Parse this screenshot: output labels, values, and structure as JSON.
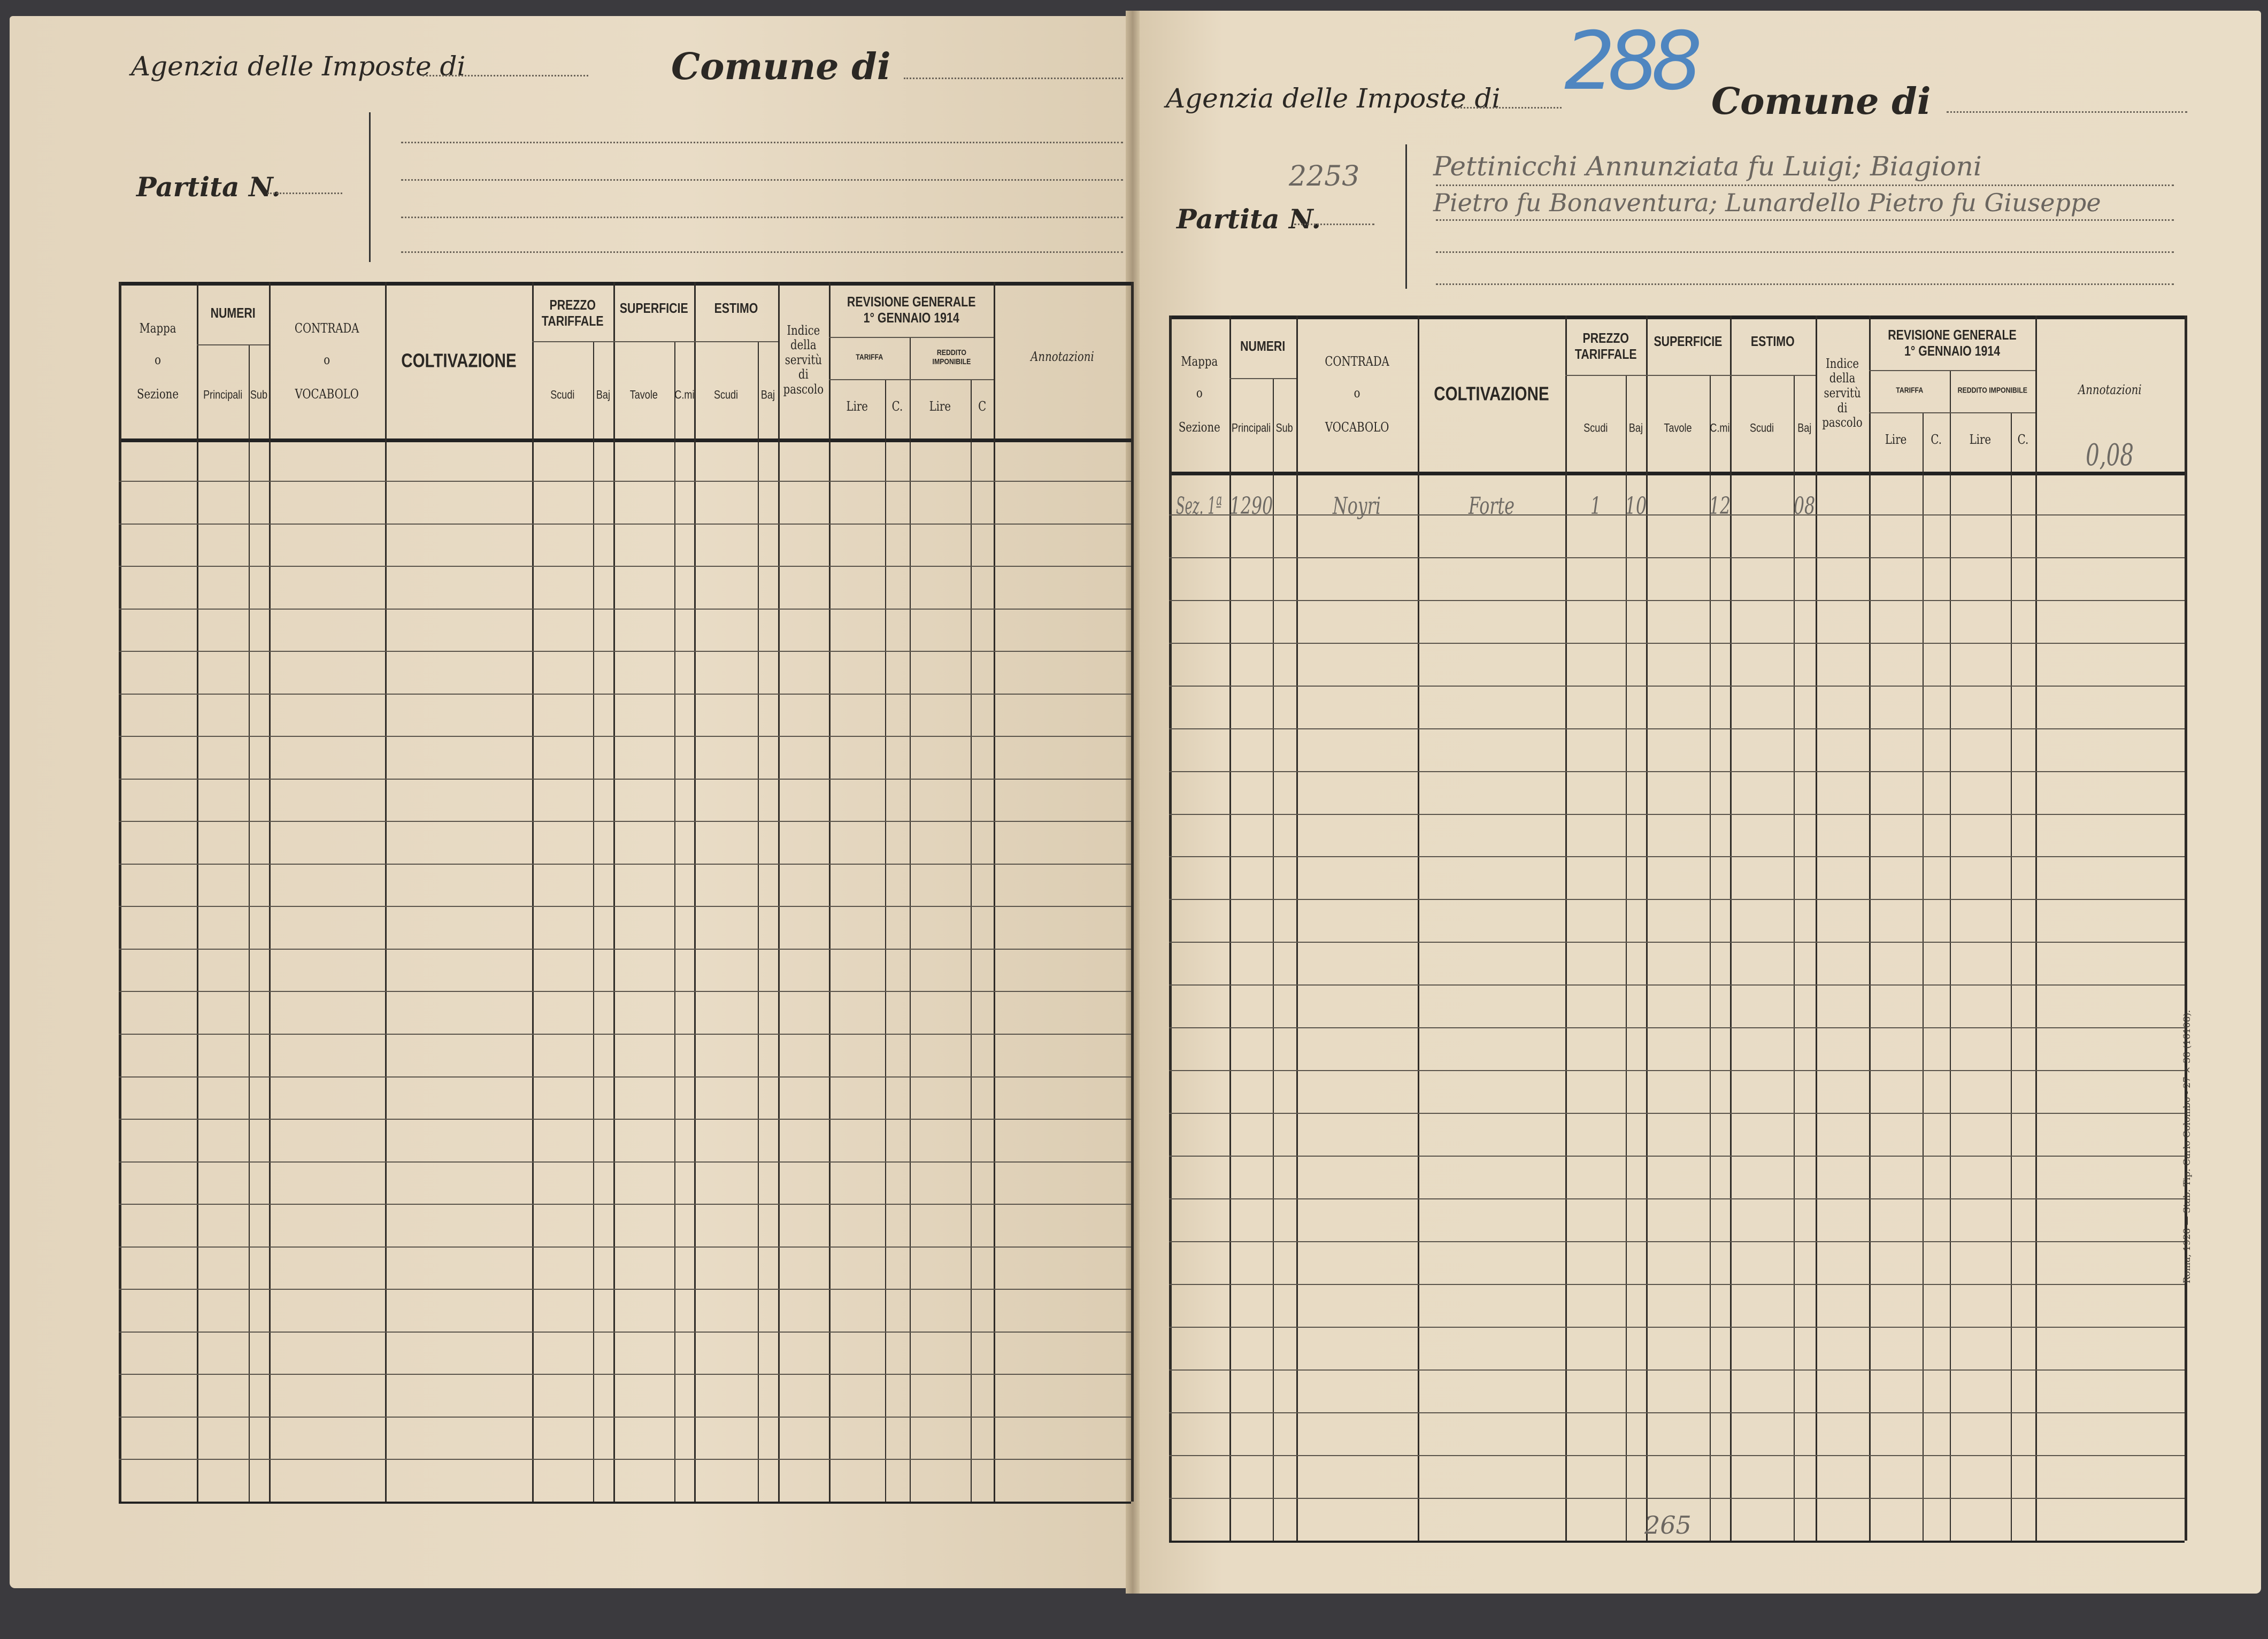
{
  "left_page": {
    "agenzia_label": "Agenzia delle Imposte di",
    "comune_label": "Comune di",
    "partita_label": "Partita N.",
    "columns": {
      "mappa": "Mappa",
      "o1": "o",
      "sezione": "Sezione",
      "numeri": "NUMERI",
      "principali": "Principali",
      "sub": "Sub",
      "contrada": "CONTRADA",
      "o2": "o",
      "vocabolo": "VOCABOLO",
      "coltivazione": "COLTIVAZIONE",
      "prezzo": "PREZZO TARIFFALE",
      "scudi": "Scudi",
      "baj": "Baj",
      "superficie": "SUPERFICIE",
      "tavole": "Tavole",
      "cmi": "C.mi",
      "estimo": "ESTIMO",
      "scudi2": "Scudi",
      "baj2": "Baj",
      "indice": "Indice della servitù di pascolo",
      "revisione": "REVISIONE GENERALE 1° GENNAIO 1914",
      "tariffa": "TARIFFA",
      "reddito": "REDDITO IMPONIBILE",
      "lire": "Lire",
      "c": "C.",
      "lire2": "Lire",
      "c2": "C",
      "annotazioni": "Annotazioni"
    }
  },
  "right_page": {
    "agenzia_label": "Agenzia delle Imposte di",
    "comune_label": "Comune di",
    "stamp_number": "288",
    "partita_label": "Partita N.",
    "partita_number": "2253",
    "owners_line1": "Pettinicchi Annunziata fu Luigi; Biagioni",
    "owners_line2": "Pietro fu Bonaventura; Lunardello Pietro fu Giuseppe",
    "columns": {
      "mappa": "Mappa",
      "o1": "o",
      "sezione": "Sezione",
      "numeri": "NUMERI",
      "principali": "Principali",
      "sub": "Sub",
      "contrada": "CONTRADA",
      "o2": "o",
      "vocabolo": "VOCABOLO",
      "coltivazione": "COLTIVAZIONE",
      "prezzo": "PREZZO TARIFFALE",
      "scudi": "Scudi",
      "baj": "Baj",
      "superficie": "SUPERFICIE",
      "tavole": "Tavole",
      "cmi": "C.mi",
      "estimo": "ESTIMO",
      "scudi2": "Scudi",
      "baj2": "Baj",
      "indice": "Indice della servitù di pascolo",
      "revisione": "REVISIONE GENERALE 1° GENNAIO 1914",
      "tariffa": "TARIFFA",
      "reddito": "REDDITO IMPONIBILE",
      "lire": "Lire",
      "c": "C.",
      "lire2": "Lire",
      "c2": "C.",
      "annotazioni": "Annotazioni"
    },
    "annotation_value": "0,08",
    "entries": [
      {
        "mappa": "Sez. 1ª",
        "principali": "1290",
        "contrada": "Noyri",
        "coltivazione": "Forte",
        "prezzo_scudi": "1",
        "prezzo_baj": "10",
        "superficie_cmi": "12",
        "estimo_baj": "08"
      }
    ],
    "page_number": "265",
    "printer_note": "Roma, 1928 — Stab. Tip. Carlo Colombo - 27 × 38 (16108)."
  }
}
